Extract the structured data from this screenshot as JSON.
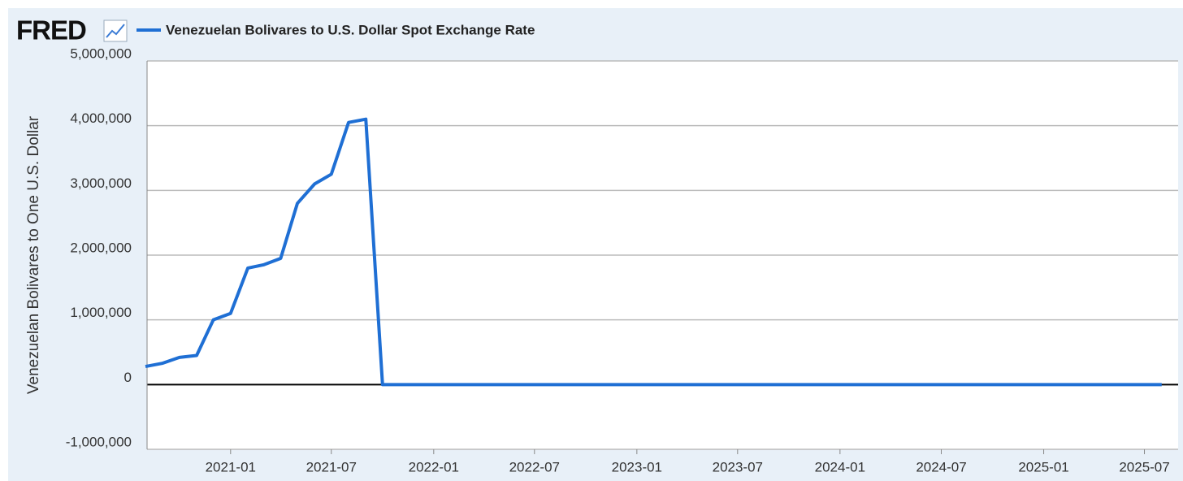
{
  "chart_data": {
    "type": "line",
    "logo": "FRED",
    "y_label": "Venezuelan Bolivares to One U.S. Dollar",
    "x": [
      "2020-08",
      "2020-09",
      "2020-10",
      "2020-11",
      "2020-12",
      "2021-01",
      "2021-02",
      "2021-03",
      "2021-04",
      "2021-05",
      "2021-06",
      "2021-07",
      "2021-08",
      "2021-09",
      "2021-10",
      "2021-11",
      "2021-12",
      "2022-01",
      "2022-02",
      "2022-03",
      "2022-04",
      "2022-05",
      "2022-06",
      "2022-07",
      "2022-08",
      "2022-09",
      "2022-10",
      "2022-11",
      "2022-12",
      "2023-01",
      "2023-02",
      "2023-03",
      "2023-04",
      "2023-05",
      "2023-06",
      "2023-07",
      "2023-08",
      "2023-09",
      "2023-10",
      "2023-11",
      "2023-12",
      "2024-01",
      "2024-02",
      "2024-03",
      "2024-04",
      "2024-05",
      "2024-06",
      "2024-07",
      "2024-08",
      "2024-09",
      "2024-10",
      "2024-11",
      "2024-12",
      "2025-01",
      "2025-02",
      "2025-03",
      "2025-04",
      "2025-05",
      "2025-06",
      "2025-07",
      "2025-08"
    ],
    "series": [
      {
        "name": "Venezuelan Bolivares to U.S. Dollar Spot Exchange Rate",
        "color": "#1f6fd4",
        "values": [
          280000,
          330000,
          420000,
          450000,
          1000000,
          1100000,
          1800000,
          1850000,
          1950000,
          2800000,
          3100000,
          3250000,
          4050000,
          4100000,
          4,
          4.6,
          4.6,
          4.7,
          4.6,
          4.4,
          4.5,
          5.2,
          5.5,
          5.8,
          7.9,
          8.2,
          8.5,
          11,
          17.5,
          22,
          24,
          24.4,
          24.6,
          26.4,
          28,
          29.5,
          32,
          34,
          35,
          35.6,
          35.9,
          36,
          36.1,
          36.2,
          36.4,
          36.5,
          36.5,
          36.6,
          36.6,
          36.8,
          39,
          45,
          51,
          52,
          62,
          70,
          87,
          96,
          106,
          120,
          140
        ]
      }
    ],
    "xlim": [
      "2020-08",
      "2025-09"
    ],
    "xticks": [
      "2021-01",
      "2021-07",
      "2022-01",
      "2022-07",
      "2023-01",
      "2023-07",
      "2024-01",
      "2024-07",
      "2025-01",
      "2025-07"
    ],
    "ylim": [
      -1000000,
      5000000
    ],
    "yticks": [
      {
        "value": -1000000,
        "label": "-1,000,000"
      },
      0,
      {
        "value": 1000000,
        "label": "1,000,000"
      },
      {
        "value": 2000000,
        "label": "2,000,000"
      },
      {
        "value": 3000000,
        "label": "3,000,000"
      },
      {
        "value": 4000000,
        "label": "4,000,000"
      },
      {
        "value": 5000000,
        "label": "5,000,000"
      }
    ],
    "grid": true
  }
}
